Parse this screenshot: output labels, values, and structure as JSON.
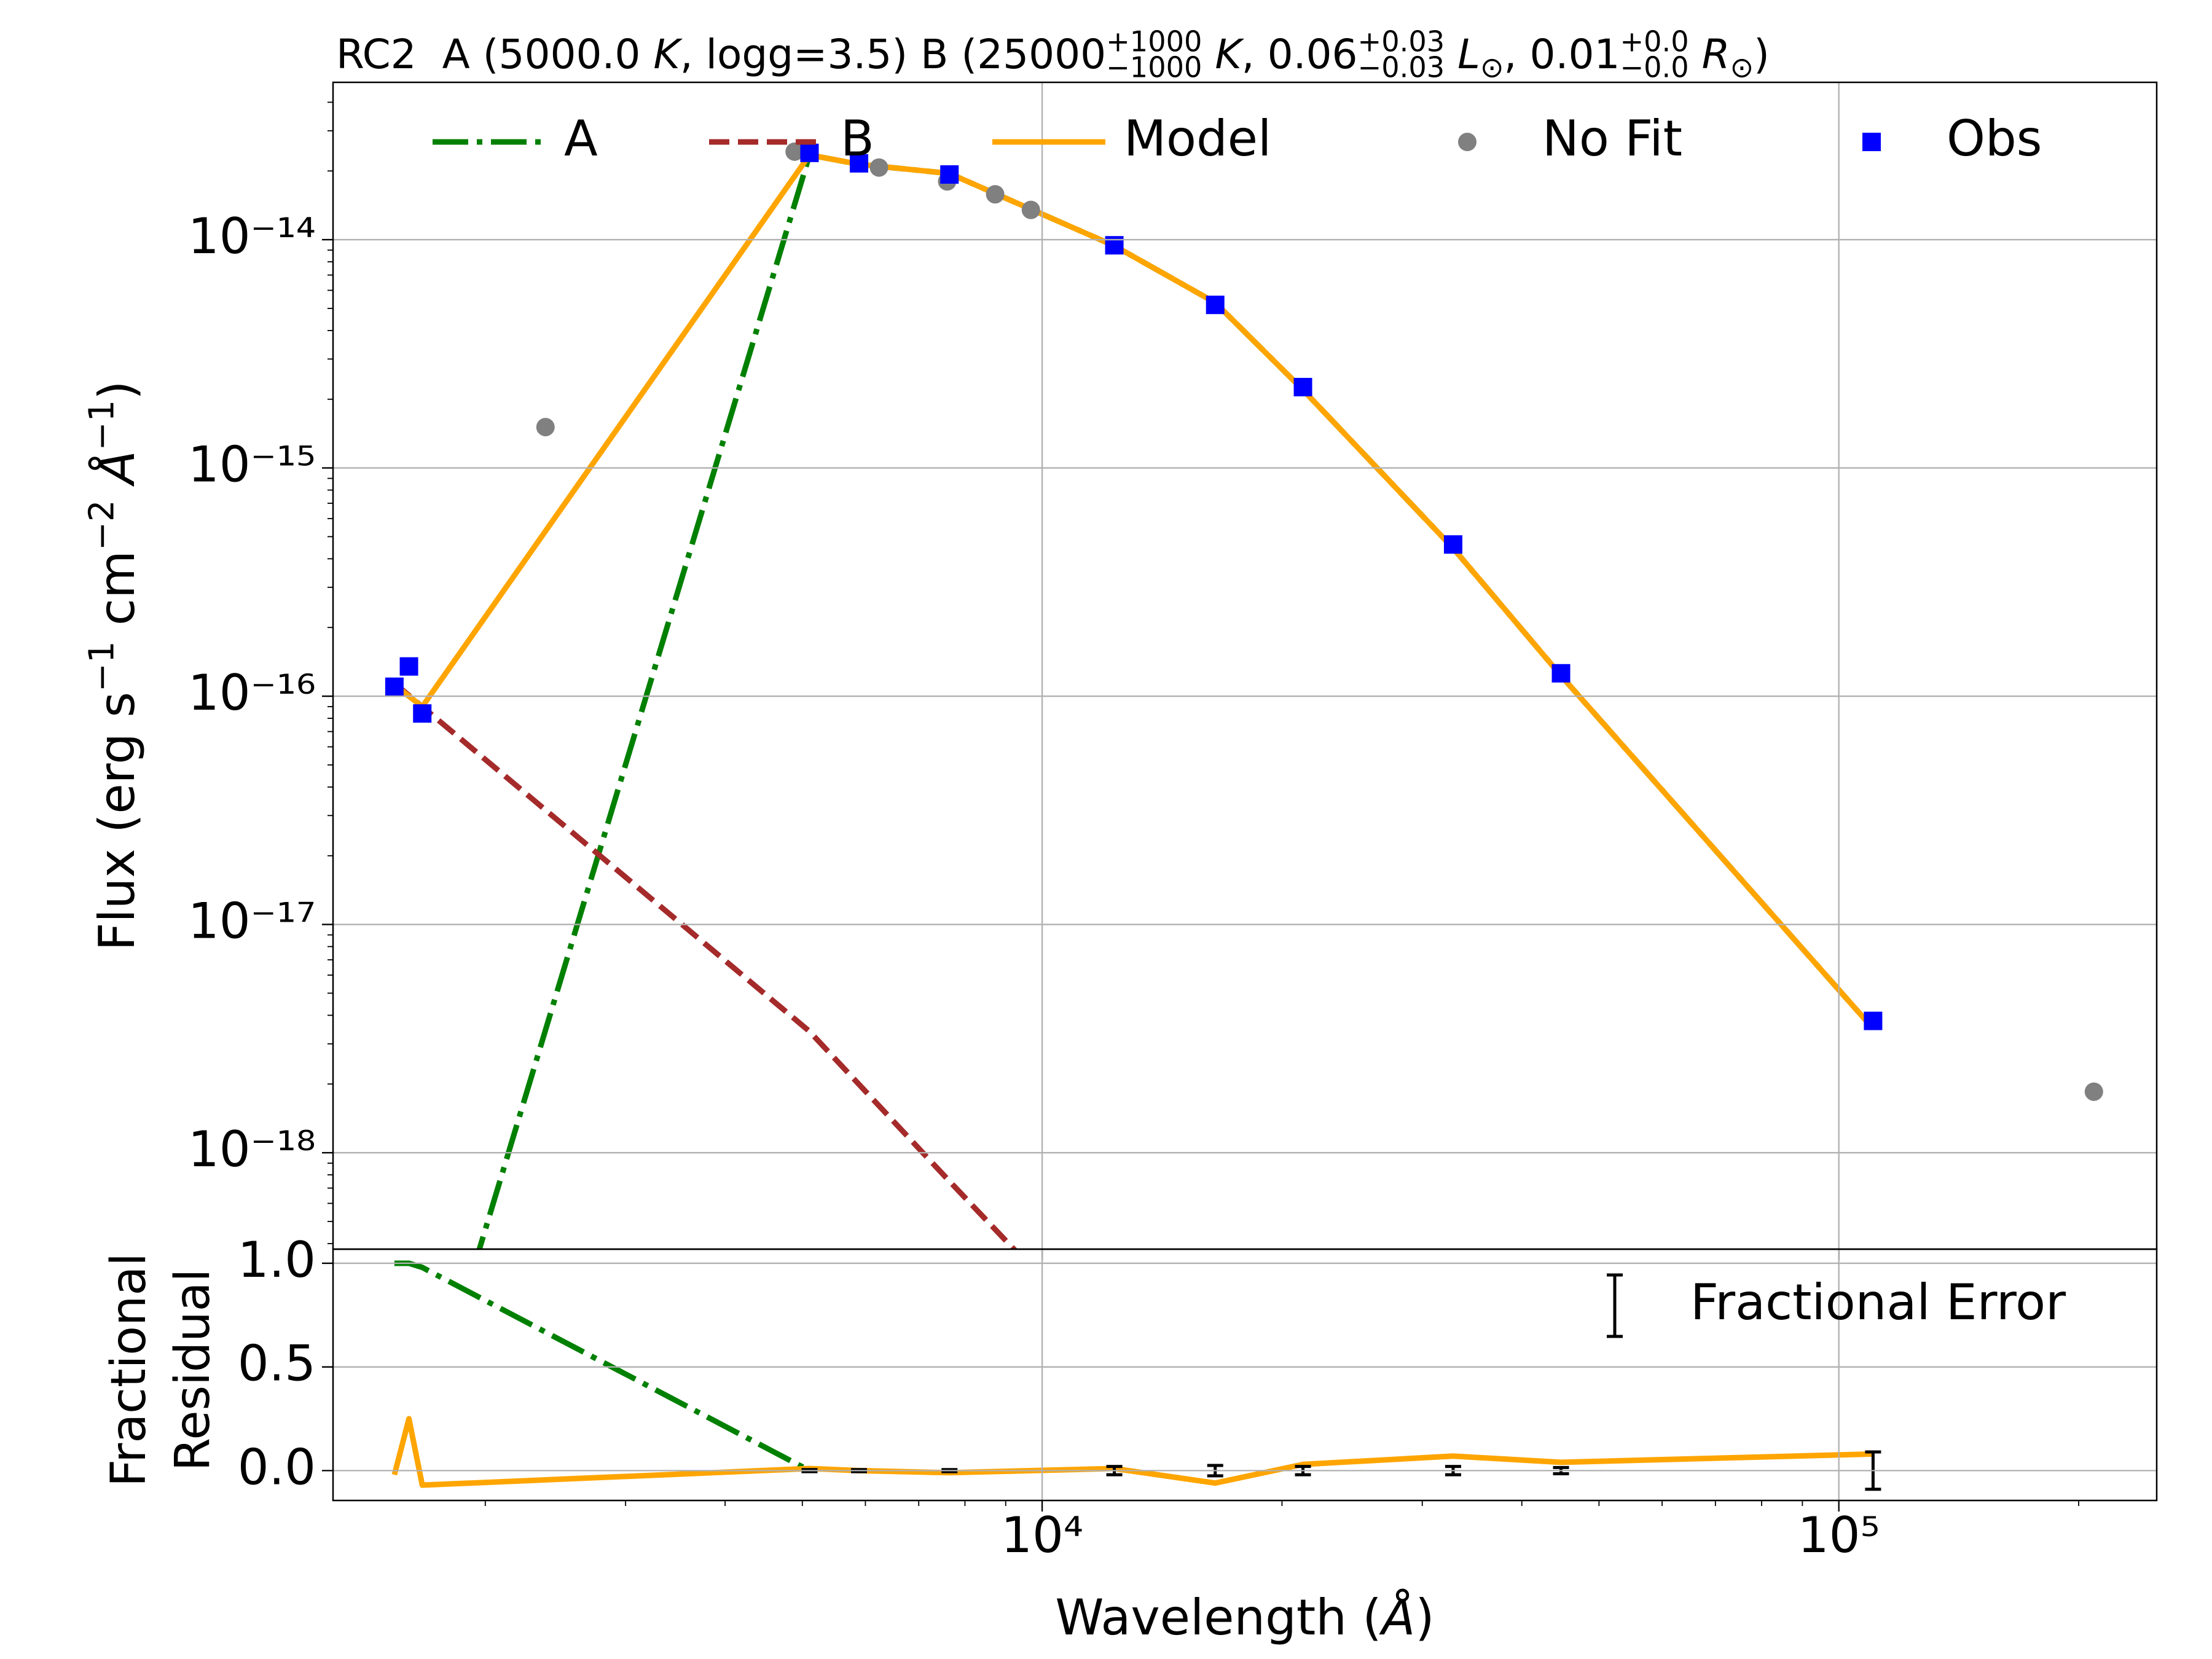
{
  "chart_data": [
    {
      "type": "line",
      "title": [
        {
          "text": "RC2  A (5000.0",
          "style": "normal"
        },
        {
          "text": " K",
          "style": "italic"
        },
        {
          "text": ", logg=3.5) B (25000",
          "style": "normal"
        },
        {
          "text": "+1000",
          "style": "sup"
        },
        {
          "text": "−1000",
          "style": "sub"
        },
        {
          "text": " K",
          "style": "italic"
        },
        {
          "text": ", 0.06",
          "style": "normal"
        },
        {
          "text": "+0.03",
          "style": "sup"
        },
        {
          "text": "−0.03",
          "style": "sub"
        },
        {
          "text": " L",
          "style": "italic"
        },
        {
          "text": "⊙",
          "style": "sub"
        },
        {
          "text": ", 0.01",
          "style": "normal"
        },
        {
          "text": "+0.0",
          "style": "sup"
        },
        {
          "text": "−0.0",
          "style": "sub"
        },
        {
          "text": " R",
          "style": "italic"
        },
        {
          "text": "⊙",
          "style": "sub"
        },
        {
          "text": ")",
          "style": "normal"
        }
      ],
      "ylabel": [
        {
          "text": "Flux (erg s",
          "style": "normal"
        },
        {
          "text": "−1",
          "style": "sup"
        },
        {
          "text": " cm",
          "style": "normal"
        },
        {
          "text": "−2",
          "style": "sup"
        },
        {
          "text": " Å",
          "style": "italic"
        },
        {
          "text": "−1",
          "style": "sup"
        },
        {
          "text": ")",
          "style": "normal"
        }
      ],
      "xscale": "log",
      "yscale": "log",
      "xlim": [
        1288,
        250600
      ],
      "ylim": [
        3.78e-19,
        4.89e-14
      ],
      "xticks": [
        10000,
        100000
      ],
      "yticks": [
        {
          "value": 1e-18,
          "label": "10⁻¹⁸"
        },
        {
          "value": 1e-17,
          "label": "10⁻¹⁷"
        },
        {
          "value": 1e-16,
          "label": "10⁻¹⁶"
        },
        {
          "value": 1e-15,
          "label": "10⁻¹⁵"
        },
        {
          "value": 1e-14,
          "label": "10⁻¹⁴"
        }
      ],
      "yminor": [
        4e-19,
        5e-19,
        6e-19,
        7e-19,
        8e-19,
        9e-19,
        2e-18,
        3e-18,
        4e-18,
        5e-18,
        6e-18,
        7e-18,
        8e-18,
        9e-18,
        2e-17,
        3e-17,
        4e-17,
        5e-17,
        6e-17,
        7e-17,
        8e-17,
        9e-17,
        2e-16,
        3e-16,
        4e-16,
        5e-16,
        6e-16,
        7e-16,
        8e-16,
        9e-16,
        2e-15,
        3e-15,
        4e-15,
        5e-15,
        6e-15,
        7e-15,
        8e-15,
        9e-15,
        2e-14,
        3e-14,
        4e-14
      ],
      "grid": true,
      "legend": "upper center",
      "series": [
        {
          "name": "A",
          "color": "#008000",
          "linestyle": "dashdot",
          "x": [
            1667,
            5105,
            5890,
            7650,
            12320,
            16490,
            21250,
            32800,
            44800,
            110400
          ],
          "values": [
            5.6e-20,
            2.35e-14,
            2.14e-14,
            1.95e-14,
            9.4e-15,
            5.3e-15,
            2.2e-15,
            4.45e-16,
            1.23e-16,
            3.5e-18
          ]
        },
        {
          "name": "B",
          "color": "#a52a2a",
          "linestyle": "dashed",
          "x": [
            1538,
            1667,
            5105,
            7650,
            12320
          ],
          "values": [
            1.14e-16,
            9e-17,
            3.4e-18,
            7.5e-19,
            1.3e-19
          ]
        },
        {
          "name": "Model",
          "color": "#ffa500",
          "linestyle": "solid",
          "x": [
            1538,
            1604,
            1667,
            5105,
            5890,
            7650,
            12320,
            16490,
            21250,
            32800,
            44800,
            110400
          ],
          "values": [
            1.12e-16,
            1e-16,
            9e-17,
            2.35e-14,
            2.14e-14,
            1.95e-14,
            9.4e-15,
            5.3e-15,
            2.2e-15,
            4.45e-16,
            1.23e-16,
            3.5e-18
          ]
        },
        {
          "name": "No Fit",
          "color": "#808080",
          "marker": "circle",
          "x": [
            2380,
            4890,
            6240,
            7600,
            8730,
            9680,
            209000
          ],
          "values": [
            1.51e-15,
            2.43e-14,
            2.07e-14,
            1.8e-14,
            1.58e-14,
            1.35e-14,
            1.85e-18
          ]
        },
        {
          "name": "Obs",
          "color": "#0000ff",
          "marker": "square",
          "x": [
            1538,
            1604,
            1667,
            5105,
            5890,
            7650,
            12320,
            16490,
            21250,
            32800,
            44800,
            110400
          ],
          "values": [
            1.1e-16,
            1.35e-16,
            8.4e-17,
            2.4e-14,
            2.16e-14,
            1.93e-14,
            9.45e-15,
            5.18e-15,
            2.26e-15,
            4.62e-16,
            1.26e-16,
            3.78e-18
          ]
        }
      ]
    },
    {
      "type": "line",
      "ylabel": [
        "Fractional",
        "Residual"
      ],
      "xlabel": [
        {
          "text": "Wavelength (",
          "style": "normal"
        },
        {
          "text": "Å",
          "style": "italic"
        },
        {
          "text": ")",
          "style": "normal"
        }
      ],
      "xscale": "log",
      "yscale": "linear",
      "xlim": [
        1288,
        250600
      ],
      "ylim": [
        -0.144,
        1.068
      ],
      "xticks": [
        {
          "value": 10000,
          "label": "10⁴"
        },
        {
          "value": 100000,
          "label": "10⁵"
        }
      ],
      "xminor": [
        2000,
        3000,
        4000,
        5000,
        6000,
        7000,
        8000,
        9000,
        20000,
        30000,
        40000,
        50000,
        60000,
        70000,
        80000,
        90000,
        200000
      ],
      "yticks": [
        {
          "value": 0,
          "label": "0.0"
        },
        {
          "value": 0.5,
          "label": "0.5"
        },
        {
          "value": 1,
          "label": "1.0"
        }
      ],
      "grid": true,
      "legend": "upper right",
      "series": [
        {
          "color": "#008000",
          "linestyle": "dashdot",
          "x": [
            1538,
            1604,
            1667,
            5105
          ],
          "values": [
            1.0,
            1.0,
            0.98,
            0.0
          ]
        },
        {
          "color": "#ffa500",
          "linestyle": "solid",
          "x": [
            1538,
            1604,
            1667,
            5105,
            5890,
            7650,
            12320,
            16490,
            21250,
            32800,
            44800,
            110400
          ],
          "values": [
            -0.02,
            0.25,
            -0.07,
            0.01,
            0.0,
            -0.01,
            0.01,
            -0.06,
            0.03,
            0.07,
            0.04,
            0.08
          ]
        },
        {
          "name": "Fractional Error",
          "color": "#000000",
          "marker": "errorbar",
          "x": [
            5105,
            5890,
            7650,
            12320,
            16490,
            21250,
            32800,
            44800,
            110400
          ],
          "values": [
            0,
            0,
            0,
            0,
            0,
            0,
            0,
            0,
            0
          ],
          "errors": [
            0.005,
            0.005,
            0.005,
            0.02,
            0.025,
            0.02,
            0.02,
            0.015,
            0.09
          ]
        }
      ]
    }
  ]
}
